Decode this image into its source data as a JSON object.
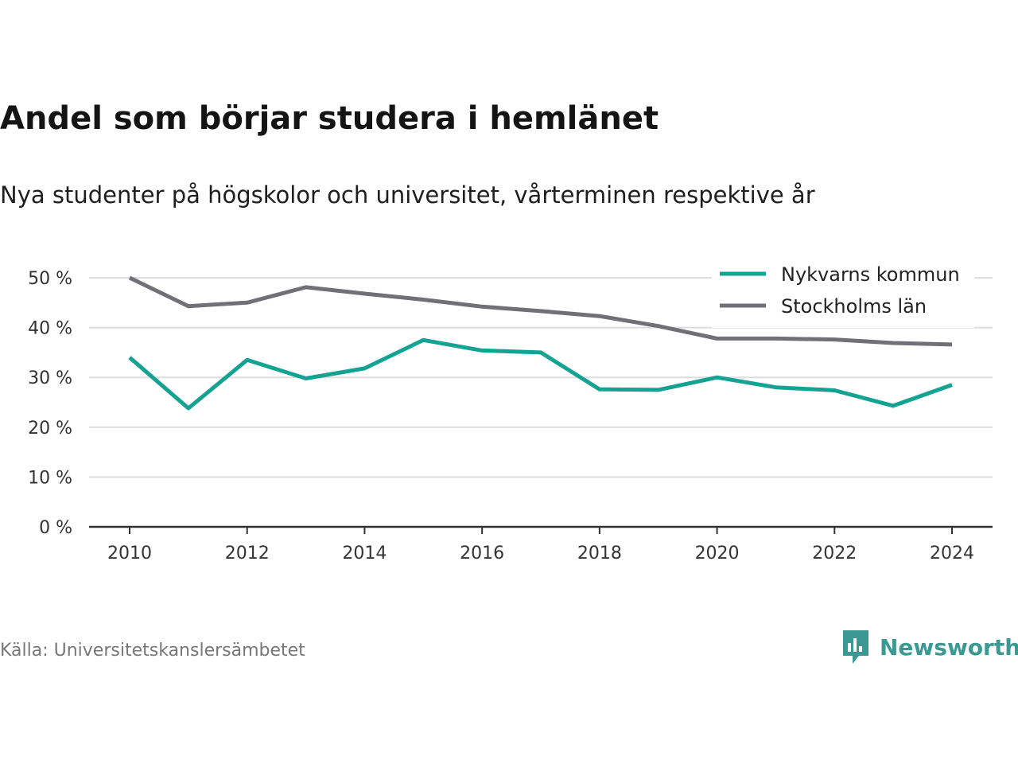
{
  "chart_data": {
    "type": "line",
    "title": "Andel som börjar studera i hemlänet",
    "subtitle": "Nya studenter på högskolor och universitet, vårterminen respektive år",
    "x": [
      2010,
      2011,
      2012,
      2013,
      2014,
      2015,
      2016,
      2017,
      2018,
      2019,
      2020,
      2021,
      2022,
      2023,
      2024
    ],
    "x_ticks": [
      2010,
      2012,
      2014,
      2016,
      2018,
      2020,
      2022,
      2024
    ],
    "y_ticks": [
      0,
      10,
      20,
      30,
      40,
      50
    ],
    "y_tick_labels": [
      "0 %",
      "10 %",
      "20 %",
      "30 %",
      "40 %",
      "50 %"
    ],
    "ylim": [
      0,
      50
    ],
    "grid": true,
    "legend_position": "top-right",
    "series": [
      {
        "name": "Nykvarns kommun",
        "color": "#14a393",
        "values": [
          34.0,
          23.8,
          33.5,
          29.8,
          31.8,
          37.5,
          35.4,
          35.0,
          27.6,
          27.5,
          30.0,
          28.0,
          27.4,
          24.3,
          28.5
        ]
      },
      {
        "name": "Stockholms län",
        "color": "#727077",
        "values": [
          50.0,
          44.3,
          45.0,
          48.1,
          46.8,
          45.6,
          44.2,
          43.3,
          42.3,
          40.3,
          37.8,
          37.8,
          37.6,
          36.9,
          36.6
        ]
      }
    ]
  },
  "footer": {
    "source": "Källa: Universitetskanslersämbetet",
    "brand": "Newsworthy",
    "brand_color": "#3a9a93",
    "brand_icon": "newsworthy-logo-icon"
  }
}
